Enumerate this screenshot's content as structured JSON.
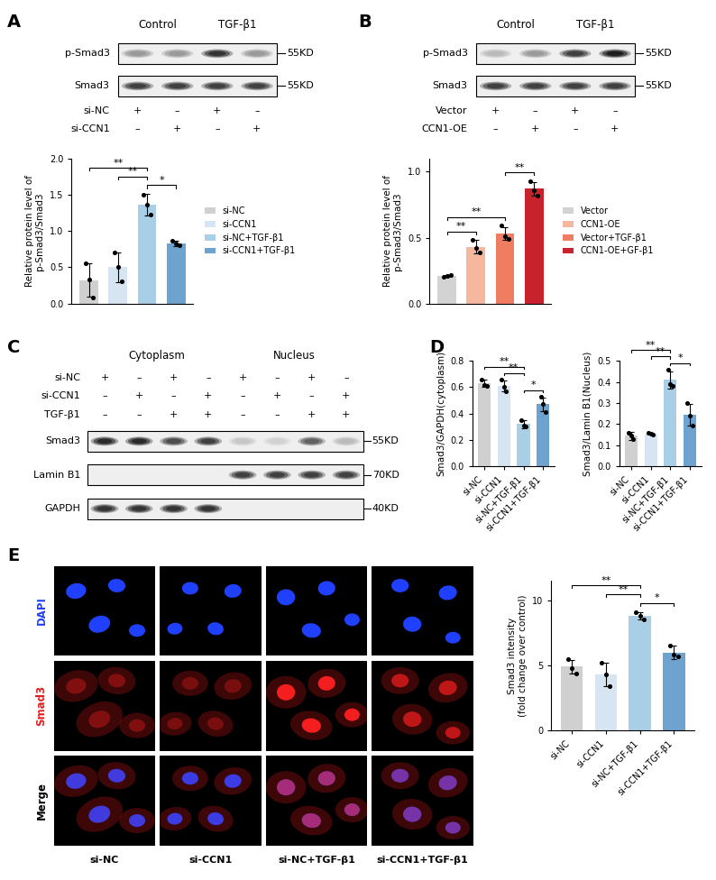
{
  "panel_letters": [
    "A",
    "B",
    "C",
    "D",
    "E"
  ],
  "blots": [
    {
      "groups": [
        {
          "label": "Control",
          "lanes": [
            0,
            1
          ]
        },
        {
          "label": "TGF-β1",
          "lanes": [
            2,
            3
          ]
        }
      ],
      "bands": [
        {
          "label": "p-Smad3",
          "mw": "55KD",
          "intensity": [
            0.45,
            0.45,
            0.9,
            0.45
          ]
        },
        {
          "label": "Smad3",
          "mw": "55KD",
          "intensity": [
            0.85,
            0.85,
            0.85,
            0.85
          ]
        }
      ],
      "sign_rows": [
        {
          "label": "si-NC",
          "signs": [
            "+",
            "–",
            "+",
            "–"
          ]
        },
        {
          "label": "si-CCN1",
          "signs": [
            "–",
            "+",
            "–",
            "+"
          ]
        }
      ]
    },
    {
      "groups": [
        {
          "label": "Control",
          "lanes": [
            0,
            1
          ]
        },
        {
          "label": "TGF-β1",
          "lanes": [
            2,
            3
          ]
        }
      ],
      "bands": [
        {
          "label": "p-Smad3",
          "mw": "55KD",
          "intensity": [
            0.3,
            0.45,
            0.85,
            1.0
          ]
        },
        {
          "label": "Smad3",
          "mw": "55KD",
          "intensity": [
            0.85,
            0.85,
            0.85,
            0.85
          ]
        }
      ],
      "sign_rows": [
        {
          "label": "Vector",
          "signs": [
            "+",
            "–",
            "+",
            "–"
          ]
        },
        {
          "label": "CCN1-OE",
          "signs": [
            "–",
            "+",
            "–",
            "+"
          ]
        }
      ]
    },
    {
      "groups": [
        {
          "label": "Cytoplasm",
          "lanes": [
            0,
            3
          ]
        },
        {
          "label": "Nucleus",
          "lanes": [
            4,
            7
          ]
        }
      ],
      "bands": [
        {
          "label": "Smad3",
          "mw": "55KD",
          "intensity": [
            0.95,
            0.95,
            0.8,
            0.85,
            0.25,
            0.2,
            0.7,
            0.3
          ]
        },
        {
          "label": "Lamin B1",
          "mw": "70KD",
          "intensity": [
            0,
            0,
            0,
            0,
            0.85,
            0.85,
            0.85,
            0.85
          ]
        },
        {
          "label": "GAPDH",
          "mw": "40KD",
          "intensity": [
            0.9,
            0.9,
            0.9,
            0.9,
            0,
            0,
            0,
            0
          ]
        }
      ],
      "sign_rows": [
        {
          "label": "si-NC",
          "signs": [
            "+",
            "–",
            "+",
            "–",
            "+",
            "–",
            "+",
            "–"
          ]
        },
        {
          "label": "si-CCN1",
          "signs": [
            "–",
            "+",
            "–",
            "+",
            "–",
            "+",
            "–",
            "+"
          ]
        },
        {
          "label": "TGF-β1",
          "signs": [
            "–",
            "–",
            "+",
            "+",
            "–",
            "–",
            "+",
            "+"
          ]
        }
      ]
    }
  ],
  "chart_data": [
    {
      "type": "bar",
      "categories": [
        "si-NC",
        "si-CCN1",
        "si-NC+TGF-β1",
        "si-CCN1+TGF-β1"
      ],
      "values": [
        0.32,
        0.5,
        1.36,
        0.83
      ],
      "errors": [
        0.23,
        0.2,
        0.15,
        0.04
      ],
      "points": [
        [
          0.55,
          0.33,
          0.08
        ],
        [
          0.7,
          0.5,
          0.31
        ],
        [
          1.5,
          1.36,
          1.22
        ],
        [
          0.86,
          0.83,
          0.8
        ]
      ],
      "colors": [
        "#d0d0d0",
        "#d6e5f1",
        "#a8cfe5",
        "#6fa3cf"
      ],
      "ylabel": "Relative protein level of\np-Smad3/Smad3",
      "ylim": [
        0,
        2.0
      ],
      "yticks": [
        {
          "value": 0,
          "label": "0.0"
        },
        {
          "value": 0.5,
          "label": "0.5"
        },
        {
          "value": 1.0,
          "label": "1.0"
        },
        {
          "value": 1.5,
          "label": "1.5"
        },
        {
          "value": 2.0,
          "label": "2.0"
        }
      ],
      "grid": false,
      "legend": "right",
      "tick_labels": "y",
      "significance": [
        {
          "pair": [
            2,
            3
          ],
          "label": "*"
        },
        {
          "pair": [
            1,
            2
          ],
          "label": "**"
        },
        {
          "pair": [
            0,
            2
          ],
          "label": "**"
        }
      ]
    },
    {
      "type": "bar",
      "categories": [
        "Vector",
        "CCN1-OE",
        "Vector+TGF-β1",
        "CCN1-OE+GF-β1"
      ],
      "values": [
        0.21,
        0.43,
        0.53,
        0.87
      ],
      "errors": [
        0.01,
        0.05,
        0.05,
        0.05
      ],
      "points": [
        [
          0.2,
          0.21,
          0.22
        ],
        [
          0.48,
          0.42,
          0.39
        ],
        [
          0.59,
          0.51,
          0.49
        ],
        [
          0.93,
          0.86,
          0.82
        ]
      ],
      "colors": [
        "#d3d3d3",
        "#f6b79f",
        "#ee7d62",
        "#c8222c"
      ],
      "ylabel": "Relative protein level of\np-Smad3/Smad3",
      "ylim": [
        0,
        1.1
      ],
      "yticks": [
        {
          "value": 0,
          "label": "0.0"
        },
        {
          "value": 0.5,
          "label": "0.5"
        },
        {
          "value": 1.0,
          "label": "1.0"
        }
      ],
      "grid": false,
      "legend": "right",
      "tick_labels": "y",
      "significance": [
        {
          "pair": [
            0,
            1
          ],
          "label": "**"
        },
        {
          "pair": [
            0,
            2
          ],
          "label": "**"
        },
        {
          "pair": [
            2,
            3
          ],
          "label": "**"
        }
      ]
    },
    {
      "type": "bar",
      "categories": [
        "si-NC",
        "si-CCN1",
        "si-NC+TGF-β1",
        "si-CCN1+TGF-β1"
      ],
      "values": [
        0.63,
        0.61,
        0.32,
        0.47
      ],
      "errors": [
        0.03,
        0.04,
        0.03,
        0.05
      ],
      "points": [
        [
          0.66,
          0.62,
          0.61
        ],
        [
          0.66,
          0.6,
          0.57
        ],
        [
          0.35,
          0.31,
          0.3
        ],
        [
          0.53,
          0.47,
          0.41
        ]
      ],
      "colors": [
        "#d0d0d0",
        "#d6e5f1",
        "#a8cfe5",
        "#6fa3cf"
      ],
      "ylabel": "Smad3/GAPDH(cytoplasm)",
      "ylim": [
        0,
        0.8
      ],
      "yticks": [
        {
          "value": 0,
          "label": "0.0"
        },
        {
          "value": 0.2,
          "label": "0.2"
        },
        {
          "value": 0.4,
          "label": "0.4"
        },
        {
          "value": 0.6,
          "label": "0.6"
        },
        {
          "value": 0.8,
          "label": "0.8"
        }
      ],
      "grid": false,
      "significance": [
        {
          "pair": [
            2,
            3
          ],
          "label": "*"
        },
        {
          "pair": [
            1,
            2
          ],
          "label": "**"
        },
        {
          "pair": [
            0,
            2
          ],
          "label": "**"
        }
      ]
    },
    {
      "type": "bar",
      "categories": [
        "si-NC",
        "si-CCN1",
        "si-NC+TGF-β1",
        "si-CCN1+TGF-β1"
      ],
      "values": [
        0.145,
        0.155,
        0.41,
        0.245
      ],
      "errors": [
        0.02,
        0.005,
        0.04,
        0.05
      ],
      "points": [
        [
          0.16,
          0.145,
          0.13
        ],
        [
          0.16,
          0.155,
          0.15
        ],
        [
          0.46,
          0.39,
          0.38
        ],
        [
          0.3,
          0.24,
          0.195
        ]
      ],
      "colors": [
        "#d0d0d0",
        "#d6e5f1",
        "#a8cfe5",
        "#6fa3cf"
      ],
      "ylabel": "Smad3/Lamin B1(Nucleus)",
      "ylim": [
        0,
        0.5
      ],
      "yticks": [
        {
          "value": 0,
          "label": "0.0"
        },
        {
          "value": 0.1,
          "label": "0.1"
        },
        {
          "value": 0.2,
          "label": "0.2"
        },
        {
          "value": 0.3,
          "label": "0.3"
        },
        {
          "value": 0.4,
          "label": "0.4"
        },
        {
          "value": 0.5,
          "label": "0.5"
        }
      ],
      "grid": false,
      "significance": [
        {
          "pair": [
            2,
            3
          ],
          "label": "*"
        },
        {
          "pair": [
            1,
            2
          ],
          "label": "**"
        },
        {
          "pair": [
            0,
            2
          ],
          "label": "**"
        }
      ]
    },
    {
      "type": "bar",
      "categories": [
        "si-NC",
        "si-CCN1",
        "si-NC+TGF-β1",
        "si-CCN1+TGF-β1"
      ],
      "values": [
        4.9,
        4.3,
        8.8,
        6.0
      ],
      "errors": [
        0.5,
        0.9,
        0.3,
        0.5
      ],
      "points": [
        [
          5.5,
          4.8,
          4.4
        ],
        [
          5.2,
          4.3,
          3.4
        ],
        [
          9.1,
          8.8,
          8.5
        ],
        [
          6.5,
          5.8,
          5.7
        ]
      ],
      "colors": [
        "#d0d0d0",
        "#d6e5f1",
        "#a8cfe5",
        "#6fa3cf"
      ],
      "ylabel": "Smad3 intensity\n(fold change over control)",
      "ylim": [
        0,
        11.5
      ],
      "yticks": [
        0,
        5,
        10
      ],
      "grid": false,
      "significance": [
        {
          "pair": [
            2,
            3
          ],
          "label": "*"
        },
        {
          "pair": [
            1,
            2
          ],
          "label": "**"
        },
        {
          "pair": [
            0,
            2
          ],
          "label": "**"
        }
      ]
    }
  ],
  "micrographs": {
    "columns": [
      "si-NC",
      "si-CCN1",
      "si-NC+TGF-β1",
      "si-CCN1+TGF-β1"
    ],
    "rows": [
      {
        "label": "DAPI",
        "color": "#1f3fff"
      },
      {
        "label": "Smad3",
        "color": "#e02020"
      },
      {
        "label": "Merge",
        "color": "#000000"
      }
    ],
    "smad3_nuclear_signal": [
      0.25,
      0.2,
      1.0,
      0.65
    ]
  }
}
